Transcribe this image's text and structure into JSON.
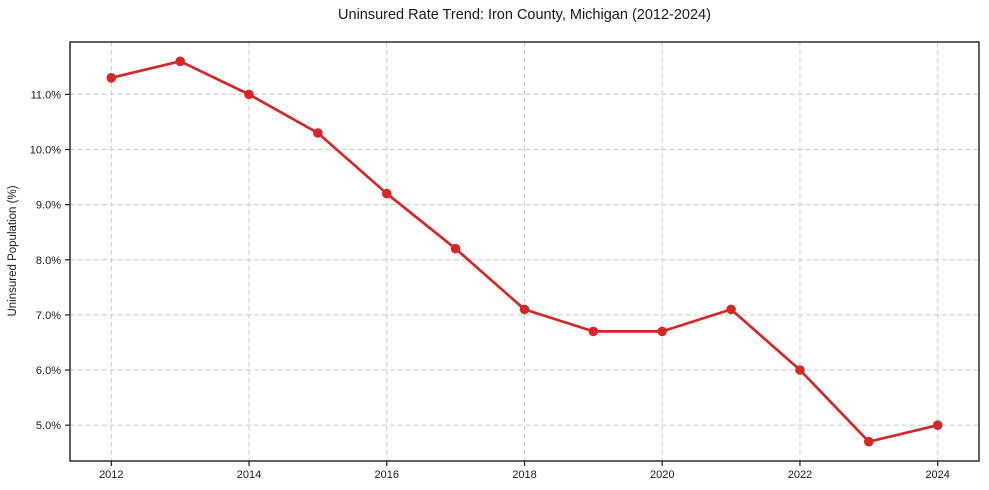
{
  "chart_data": {
    "type": "line",
    "title": "Uninsured Rate Trend: Iron County, Michigan (2012-2024)",
    "xlabel": "",
    "ylabel": "Uninsured Population (%)",
    "series": [
      {
        "name": "Uninsured Population (%)",
        "x": [
          2012,
          2013,
          2014,
          2015,
          2016,
          2017,
          2018,
          2019,
          2020,
          2021,
          2022,
          2023,
          2024
        ],
        "values": [
          11.3,
          11.6,
          11.0,
          10.3,
          9.2,
          8.2,
          7.1,
          6.7,
          6.7,
          7.1,
          6.0,
          4.7,
          5.0
        ]
      }
    ],
    "xlim": [
      2011.4,
      2024.6
    ],
    "ylim": [
      4.35,
      11.95
    ],
    "xticks": {
      "values": [
        2012,
        2014,
        2016,
        2018,
        2020,
        2022,
        2024
      ],
      "labels": [
        "2012",
        "2014",
        "2016",
        "2018",
        "2020",
        "2022",
        "2024"
      ]
    },
    "yticks": {
      "values": [
        5,
        6,
        7,
        8,
        9,
        10,
        11
      ],
      "labels": [
        "5.0%",
        "6.0%",
        "7.0%",
        "8.0%",
        "9.0%",
        "10.0%",
        "11.0%"
      ]
    },
    "grid": true,
    "grid_style": "dashed",
    "legend": "none",
    "colors": {
      "line": "#d62728",
      "marker": "#d62728",
      "grid": "#cccccc",
      "spine": "#1f1f1f",
      "background": "#ffffff"
    },
    "marker": "circle"
  }
}
